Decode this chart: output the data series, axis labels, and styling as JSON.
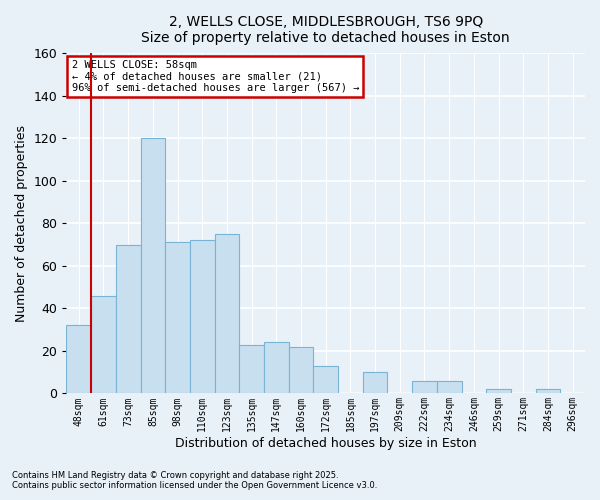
{
  "title": "2, WELLS CLOSE, MIDDLESBROUGH, TS6 9PQ",
  "subtitle": "Size of property relative to detached houses in Eston",
  "xlabel": "Distribution of detached houses by size in Eston",
  "ylabel": "Number of detached properties",
  "bar_labels": [
    "48sqm",
    "61sqm",
    "73sqm",
    "85sqm",
    "98sqm",
    "110sqm",
    "123sqm",
    "135sqm",
    "147sqm",
    "160sqm",
    "172sqm",
    "185sqm",
    "197sqm",
    "209sqm",
    "222sqm",
    "234sqm",
    "246sqm",
    "259sqm",
    "271sqm",
    "284sqm",
    "296sqm"
  ],
  "bar_values": [
    32,
    46,
    70,
    120,
    71,
    72,
    75,
    23,
    24,
    22,
    13,
    0,
    10,
    0,
    6,
    6,
    0,
    2,
    0,
    2,
    0
  ],
  "bar_color": "#c8dff0",
  "bar_edge_color": "#7ab4d4",
  "highlight_color": "#cc0000",
  "ylim": [
    0,
    160
  ],
  "yticks": [
    0,
    20,
    40,
    60,
    80,
    100,
    120,
    140,
    160
  ],
  "annotation_title": "2 WELLS CLOSE: 58sqm",
  "annotation_line1": "← 4% of detached houses are smaller (21)",
  "annotation_line2": "96% of semi-detached houses are larger (567) →",
  "annotation_box_color": "#ffffff",
  "annotation_box_edge": "#cc0000",
  "footnote1": "Contains HM Land Registry data © Crown copyright and database right 2025.",
  "footnote2": "Contains public sector information licensed under the Open Government Licence v3.0.",
  "background_color": "#e8f0f8",
  "plot_bg_color": "#e8f0f8",
  "grid_color": "#ffffff",
  "red_line_x": 0.5
}
